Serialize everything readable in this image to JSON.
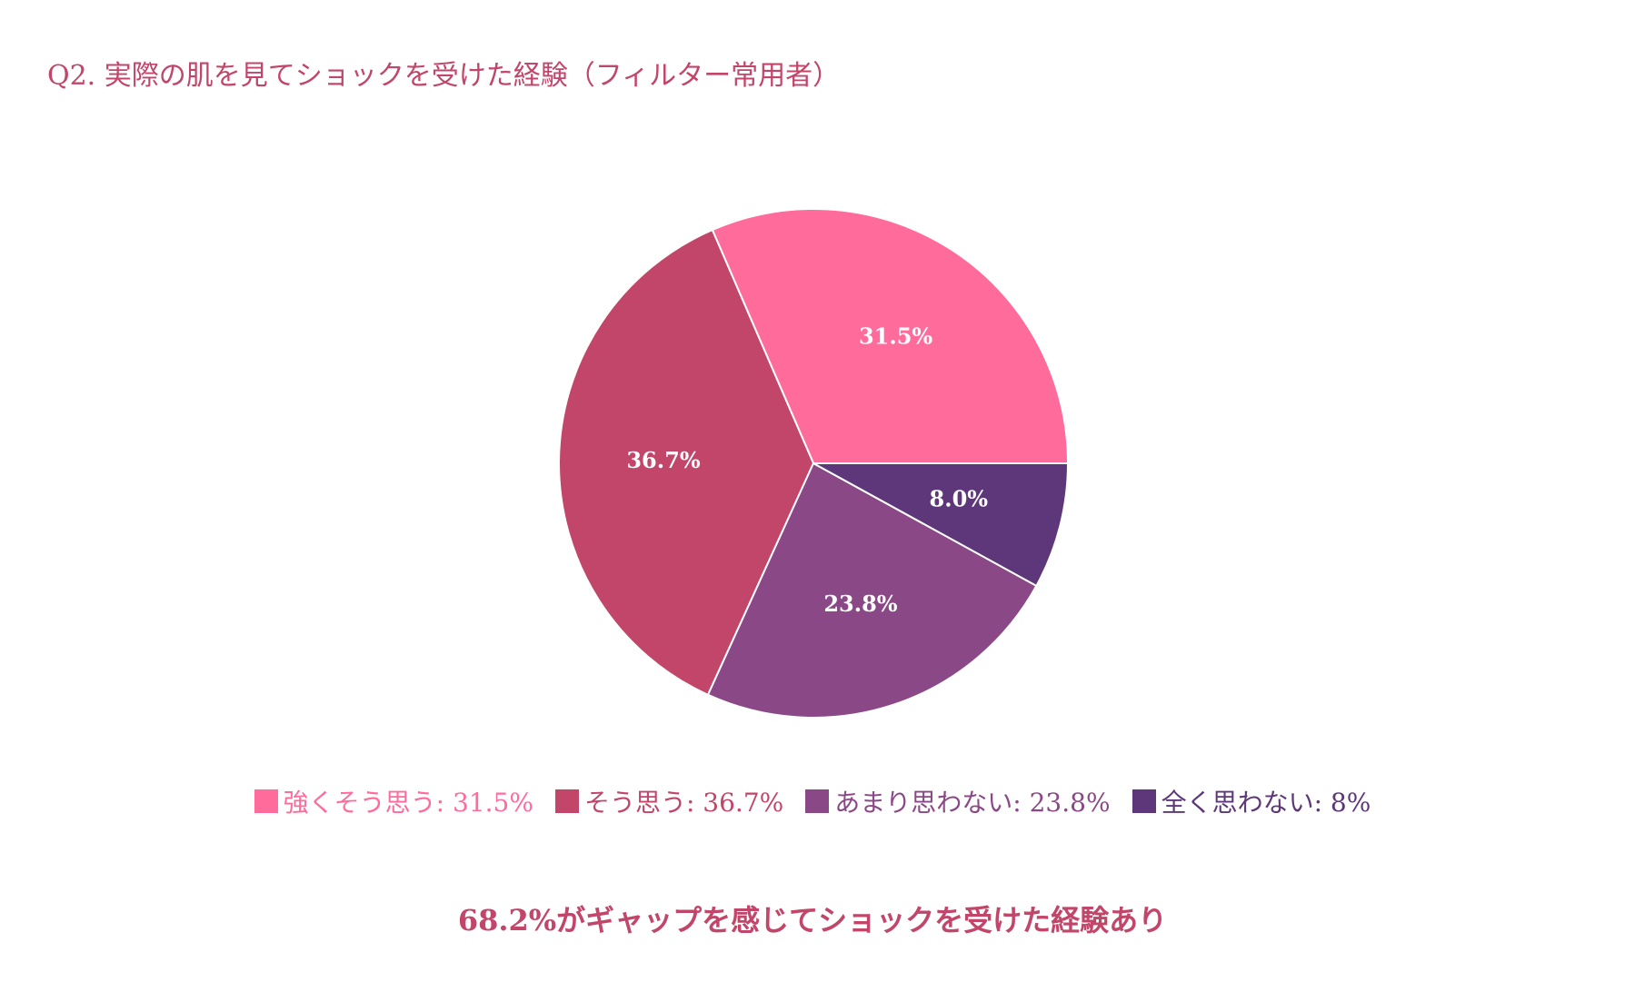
{
  "chart_data": {
    "type": "pie",
    "title": "Q2. 実際の肌を見てショックを受けた経験（フィルター常用者）",
    "slices": [
      {
        "name": "強くそう思う",
        "value": 31.5,
        "label": "31.5%",
        "legend": "強くそう思う: 31.5%",
        "color": "#ff6b9b"
      },
      {
        "name": "そう思う",
        "value": 36.7,
        "label": "36.7%",
        "legend": "そう思う: 36.7%",
        "color": "#c2456a"
      },
      {
        "name": "あまり思わない",
        "value": 23.8,
        "label": "23.8%",
        "legend": "あまり思わない: 23.8%",
        "color": "#8b4887"
      },
      {
        "name": "全く思わない",
        "value": 8.0,
        "label": "8.0%",
        "legend": "全く思わない: 8%",
        "color": "#5e377a"
      }
    ],
    "direction": "counterclockwise",
    "start": "3 o'clock",
    "legend_position": "bottom",
    "footer": "68.2%がギャップを感じてショックを受けた経験あり"
  }
}
